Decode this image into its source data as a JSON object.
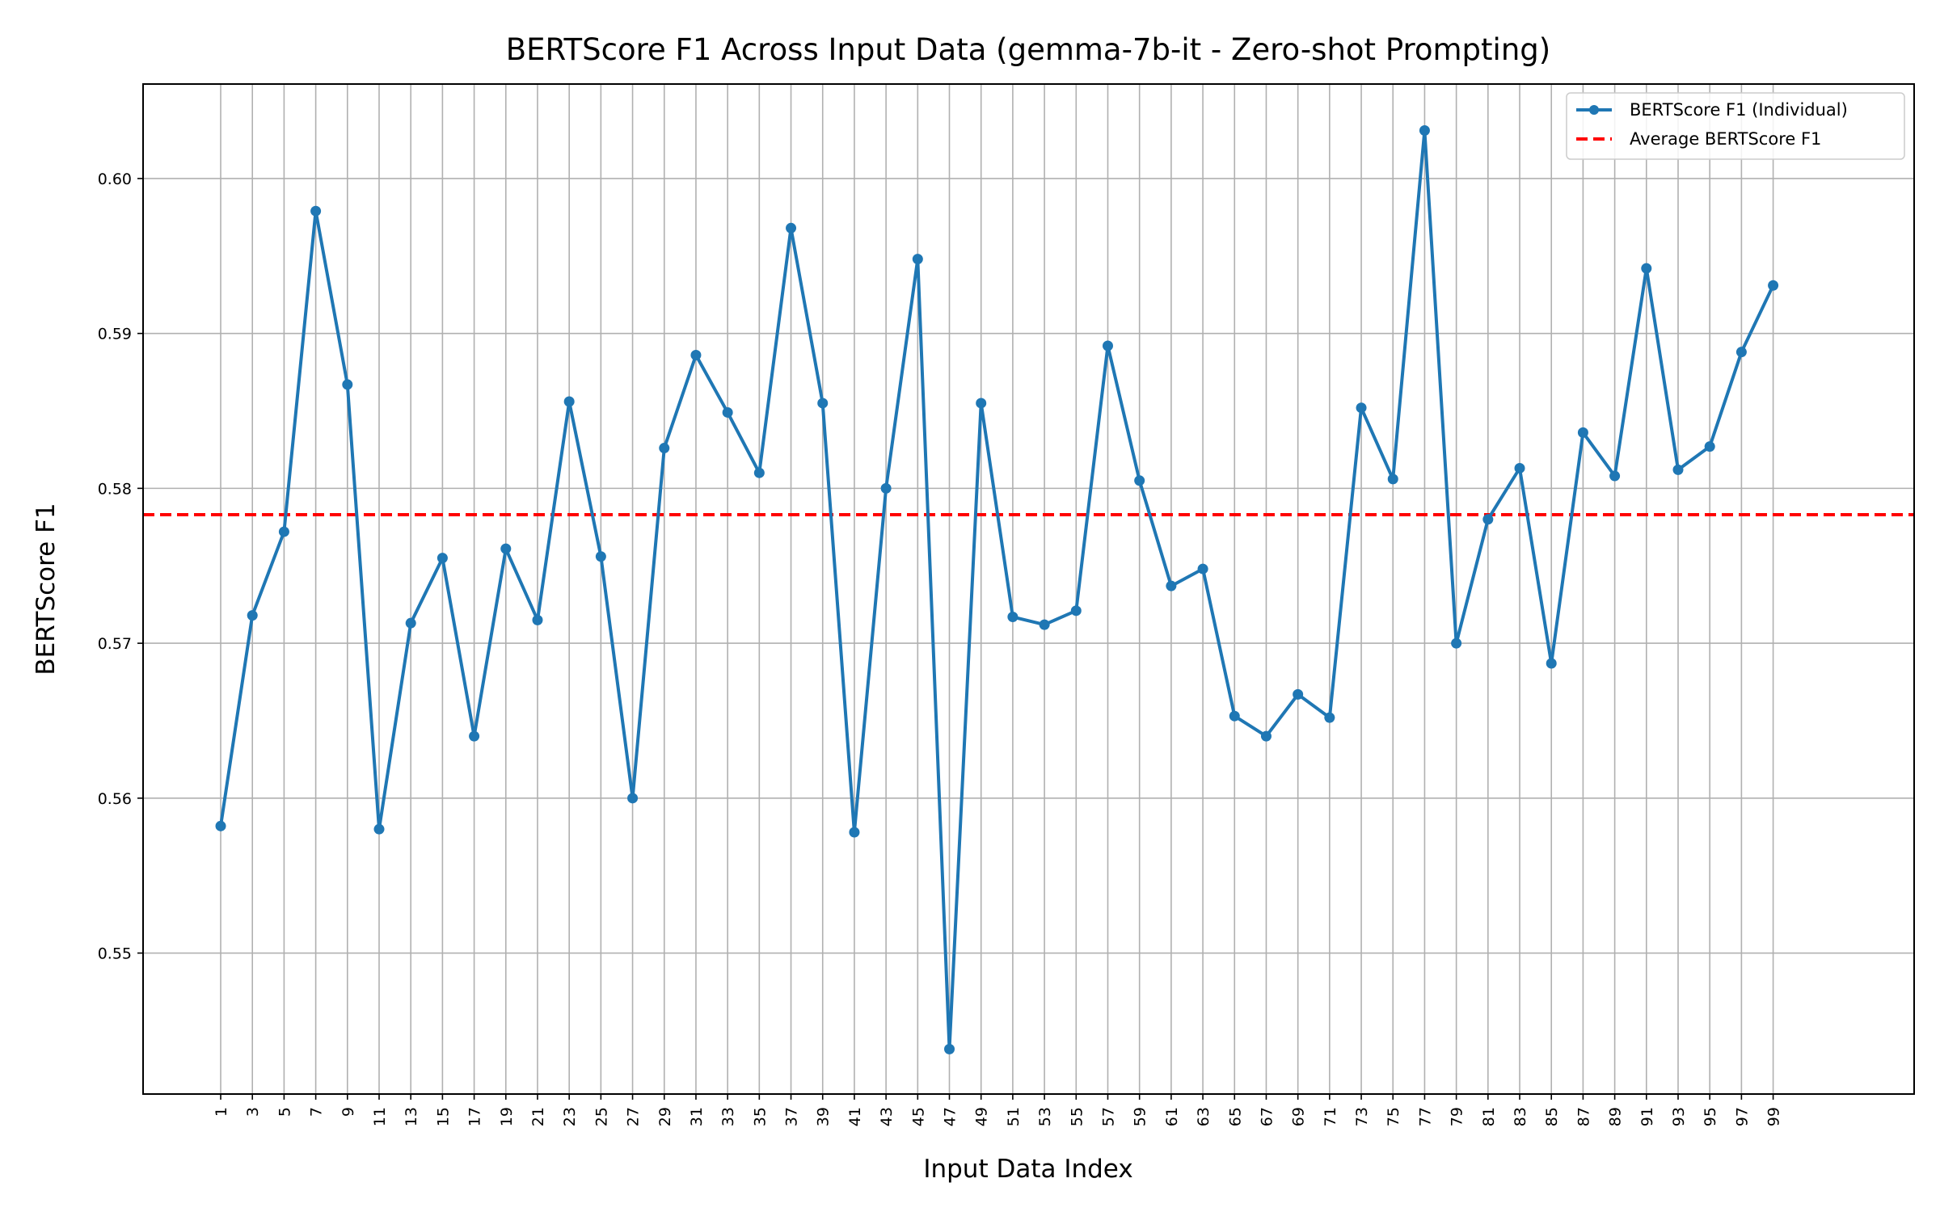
{
  "chart_data": {
    "type": "line",
    "title": "BERTScore F1 Across Input Data (gemma-7b-it - Zero-shot Prompting)",
    "xlabel": "Input Data Index",
    "ylabel": "BERTScore F1",
    "x": [
      1,
      3,
      5,
      7,
      9,
      11,
      13,
      15,
      17,
      19,
      21,
      23,
      25,
      27,
      29,
      31,
      33,
      35,
      37,
      39,
      41,
      43,
      45,
      47,
      49,
      51,
      53,
      55,
      57,
      59,
      61,
      63,
      65,
      67,
      69,
      71,
      73,
      75,
      77,
      79,
      81,
      83,
      85,
      87,
      89,
      91,
      93,
      95,
      97,
      99
    ],
    "x_tick_labels": [
      "1",
      "3",
      "5",
      "7",
      "9",
      "11",
      "13",
      "15",
      "17",
      "19",
      "21",
      "23",
      "25",
      "27",
      "29",
      "31",
      "33",
      "35",
      "37",
      "39",
      "41",
      "43",
      "45",
      "47",
      "49",
      "51",
      "53",
      "55",
      "57",
      "59",
      "61",
      "63",
      "65",
      "67",
      "69",
      "71",
      "73",
      "75",
      "77",
      "79",
      "81",
      "83",
      "85",
      "87",
      "89",
      "91",
      "93",
      "95",
      "97",
      "99"
    ],
    "y_ticks": [
      0.55,
      0.56,
      0.57,
      0.58,
      0.59,
      0.6
    ],
    "y_tick_labels": [
      "0.55",
      "0.56",
      "0.57",
      "0.58",
      "0.59",
      "0.60"
    ],
    "xlim": [
      -3.9,
      107.9
    ],
    "ylim": [
      0.5409,
      0.6061
    ],
    "grid": true,
    "legend_position": "top-right",
    "series": [
      {
        "name": "BERTScore F1 (Individual)",
        "color": "#1f77b4",
        "style": "line-with-markers",
        "values": [
          0.5582,
          0.5718,
          0.5772,
          0.5979,
          0.5867,
          0.558,
          0.5713,
          0.5755,
          0.564,
          0.5761,
          0.5715,
          0.5856,
          0.5756,
          0.56,
          0.5826,
          0.5886,
          0.5849,
          0.581,
          0.5968,
          0.5855,
          0.5578,
          0.58,
          0.5948,
          0.5438,
          0.5855,
          0.5717,
          0.5712,
          0.5721,
          0.5892,
          0.5805,
          0.5737,
          0.5748,
          0.5653,
          0.564,
          0.5667,
          0.5652,
          0.5852,
          0.5806,
          0.6031,
          0.57,
          0.578,
          0.5813,
          0.5687,
          0.5836,
          0.5808,
          0.5942,
          0.5812,
          0.5827,
          0.5888,
          0.5931
        ]
      },
      {
        "name": "Average BERTScore F1",
        "color": "#ff0000",
        "style": "dashed-hline",
        "value": 0.5783
      }
    ]
  }
}
